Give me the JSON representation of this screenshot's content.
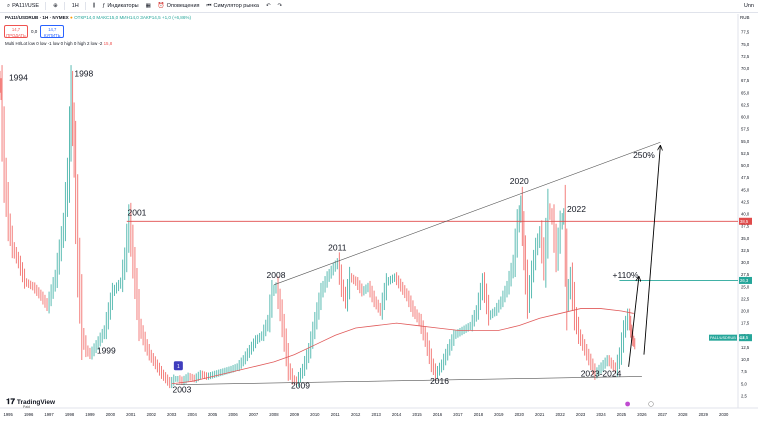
{
  "toolbar": {
    "symbol": "PA11!/USE",
    "interval": "1H",
    "indicators": "Индикаторы",
    "alerts": "Оповещения",
    "simulator": "Симулятор рынка",
    "right_label": "Unn"
  },
  "legend": {
    "symbol": "PA11!/USDRUB · 1Н · NYMEX",
    "ohlc": "ОТКР14,0  МАКС15,0  МИН14,0  ЗАКР14,5  +1,0 (+6,86%)"
  },
  "trade": {
    "sell_price": "14,7",
    "sell_label": "ПРОДАТЬ",
    "spread": "0,0",
    "buy_price": "14,7",
    "buy_label": "КУПИТЬ"
  },
  "indicator": {
    "label": "Multi HI/Lot low 0 low -1 low 0 high 0 high 2 low -2",
    "value": "15,8"
  },
  "currency_code": "RUB",
  "logo": {
    "text": "TradingView",
    "sub": "Paid"
  },
  "colors": {
    "candle_up": "#26a69a",
    "candle_down": "#ef5350",
    "ma_line": "#e05a5a",
    "resistance": "#e04b4b",
    "target": "#26a69a",
    "trend": "#555555",
    "arrow": "#000000",
    "current": "#26a69a"
  },
  "chart_data": {
    "type": "line",
    "title": "PA11!/USDRUB · 1Н · NYMEX",
    "xlabel": "",
    "ylabel": "RUB",
    "xlim": [
      1994.6,
      2030.7
    ],
    "ylim": [
      0,
      80
    ],
    "x_ticks": [
      "1995",
      "1996",
      "1997",
      "1998",
      "1999",
      "2000",
      "2001",
      "2002",
      "2003",
      "2004",
      "2005",
      "2006",
      "2007",
      "2008",
      "2009",
      "2010",
      "2011",
      "2012",
      "2013",
      "2014",
      "2015",
      "2016",
      "2017",
      "2018",
      "2019",
      "2020",
      "2021",
      "2022",
      "2023",
      "2024",
      "2025",
      "2026",
      "2027",
      "2028",
      "2029",
      "2030"
    ],
    "y_ticks": [
      2.5,
      5,
      7.5,
      10,
      12.5,
      15,
      17.5,
      20,
      22.5,
      25,
      27.5,
      30,
      32.5,
      35,
      37.5,
      40,
      42.5,
      45,
      47.5,
      50,
      52.5,
      55,
      57.5,
      60,
      62.5,
      65,
      67.5,
      70,
      72.5,
      75,
      77.5
    ],
    "series": [
      {
        "name": "price",
        "x": [
          1994.6,
          1994.7,
          1994.9,
          1995.1,
          1995.3,
          1995.6,
          1995.9,
          1996.3,
          1996.7,
          1997.0,
          1997.4,
          1997.8,
          1998.0,
          1998.15,
          1998.3,
          1998.5,
          1998.7,
          1998.9,
          1999.1,
          1999.4,
          1999.8,
          2000.2,
          2000.6,
          2000.8,
          2001.0,
          2001.2,
          2001.5,
          2001.8,
          2002.0,
          2002.3,
          2002.6,
          2003.0,
          2003.2,
          2003.4,
          2003.6,
          2003.9,
          2004.2,
          2004.5,
          2004.8,
          2005.2,
          2005.6,
          2006.0,
          2006.3,
          2006.6,
          2006.9,
          2007.2,
          2007.5,
          2007.8,
          2008.0,
          2008.2,
          2008.4,
          2008.6,
          2008.8,
          2009.0,
          2009.2,
          2009.5,
          2009.8,
          2010.1,
          2010.4,
          2010.7,
          2011.0,
          2011.2,
          2011.4,
          2011.6,
          2011.8,
          2012.1,
          2012.4,
          2012.7,
          2013.0,
          2013.3,
          2013.6,
          2014.0,
          2014.3,
          2014.6,
          2014.9,
          2015.2,
          2015.5,
          2015.8,
          2016.0,
          2016.3,
          2016.6,
          2016.9,
          2017.3,
          2017.7,
          2018.0,
          2018.3,
          2018.6,
          2018.9,
          2019.2,
          2019.5,
          2019.8,
          2020.0,
          2020.15,
          2020.3,
          2020.5,
          2020.7,
          2020.9,
          2021.1,
          2021.3,
          2021.5,
          2021.7,
          2021.9,
          2022.1,
          2022.25,
          2022.4,
          2022.6,
          2022.8,
          2023.0,
          2023.2,
          2023.4,
          2023.6,
          2023.8,
          2024.0,
          2024.2,
          2024.4,
          2024.6,
          2024.8,
          2025.0,
          2025.2,
          2025.4,
          2025.5,
          2025.6,
          2025.7
        ],
        "y": [
          68,
          65,
          48,
          38,
          33,
          30,
          26,
          25,
          23,
          21,
          27,
          38,
          48,
          65,
          52,
          30,
          15,
          12,
          11,
          13,
          16,
          24,
          26,
          31,
          39,
          30,
          17,
          13,
          11,
          9,
          7,
          5,
          6,
          6,
          5.5,
          6.5,
          6,
          7,
          6.5,
          7,
          7.5,
          8,
          8.5,
          10,
          12,
          14,
          15,
          18,
          24,
          25,
          20,
          14,
          8,
          6,
          5.5,
          8,
          12,
          18,
          24,
          27,
          29,
          30,
          25,
          22,
          27,
          26,
          24,
          25,
          22,
          20,
          26,
          27,
          25,
          23,
          20,
          18,
          14,
          9,
          7,
          9,
          12,
          15,
          16,
          17,
          20,
          26,
          19,
          20,
          22,
          25,
          30,
          38,
          42,
          32,
          22,
          28,
          33,
          36,
          29,
          41,
          39,
          31,
          38,
          40,
          22,
          27,
          19,
          15,
          13,
          11,
          9,
          7,
          8,
          9,
          10,
          9,
          8,
          11,
          16,
          19,
          16,
          14,
          13
        ]
      },
      {
        "name": "moving average",
        "x": [
          2003.0,
          2004.0,
          2005.0,
          2006.0,
          2007.0,
          2008.0,
          2009.0,
          2010.0,
          2011.0,
          2012.0,
          2013.0,
          2014.0,
          2015.0,
          2016.0,
          2017.0,
          2018.0,
          2019.0,
          2020.0,
          2021.0,
          2022.0,
          2023.0,
          2024.0,
          2025.0,
          2025.6
        ],
        "y": [
          5,
          5.5,
          6.5,
          7.5,
          8.5,
          9.5,
          11,
          13,
          15,
          16.5,
          17,
          17.5,
          17,
          16.5,
          16,
          16,
          16,
          17,
          18.5,
          19.5,
          20.5,
          20.5,
          20,
          19.5
        ]
      }
    ],
    "levels": [
      {
        "name": "resistance",
        "value": 38.5,
        "label": "38,5"
      },
      {
        "name": "target",
        "value": 26.3,
        "label": "26,3"
      },
      {
        "name": "current price",
        "value": 14.5,
        "label": "14,5"
      },
      {
        "name": "current price ma",
        "value": 14.3,
        "label": "14,3"
      }
    ],
    "trendlines": [
      {
        "name": "upper channel",
        "x": [
          2008.0,
          2026.9
        ],
        "y": [
          25.4,
          54.8
        ]
      },
      {
        "name": "lower channel",
        "x": [
          2003.2,
          2026.0
        ],
        "y": [
          4.8,
          6.5
        ]
      }
    ],
    "arrows": [
      {
        "name": "arrow 110%",
        "x": [
          2025.35,
          2025.85
        ],
        "y": [
          8.5,
          27
        ]
      },
      {
        "name": "arrow 250%",
        "x": [
          2026.1,
          2026.9
        ],
        "y": [
          11,
          54
        ]
      }
    ],
    "annotations": [
      {
        "text": "1994",
        "x": 1995.5,
        "y": 67.5
      },
      {
        "text": "1998",
        "x": 1998.7,
        "y": 68.3
      },
      {
        "text": "2001",
        "x": 2001.3,
        "y": 39.7
      },
      {
        "text": "1999",
        "x": 1999.8,
        "y": 11.2
      },
      {
        "text": "2003",
        "x": 2003.5,
        "y": 3.2
      },
      {
        "text": "2008",
        "x": 2008.1,
        "y": 26.8
      },
      {
        "text": "2009",
        "x": 2009.3,
        "y": 4.0
      },
      {
        "text": "2011",
        "x": 2011.1,
        "y": 32.5
      },
      {
        "text": "2016",
        "x": 2016.1,
        "y": 4.9
      },
      {
        "text": "2020",
        "x": 2020.0,
        "y": 46.2
      },
      {
        "text": "2022",
        "x": 2022.8,
        "y": 40.4
      },
      {
        "text": "2023-2024",
        "x": 2024.0,
        "y": 6.5
      },
      {
        "text": "+110%",
        "x": 2025.2,
        "y": 26.8
      },
      {
        "text": "250%",
        "x": 2026.1,
        "y": 51.5
      }
    ],
    "event_markers": [
      {
        "label": "1",
        "x": 2003.3,
        "color": "#3f3dbd"
      }
    ]
  }
}
